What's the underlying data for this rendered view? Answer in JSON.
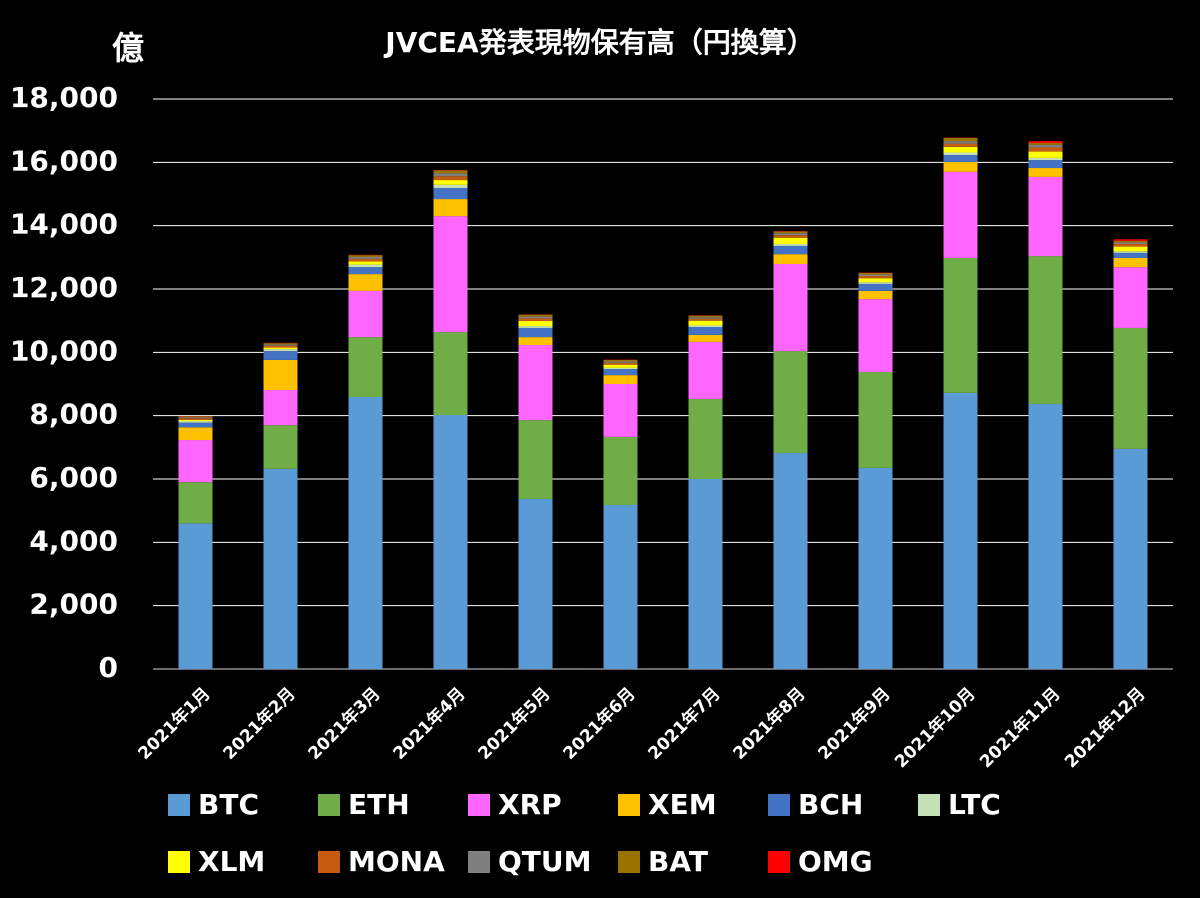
{
  "chart_data": {
    "type": "stacked_bar",
    "title": "JVCEA発表現物保有高（円換算）",
    "y_unit": "億",
    "categories": [
      "2021年1月",
      "2021年2月",
      "2021年3月",
      "2021年4月",
      "2021年5月",
      "2021年6月",
      "2021年7月",
      "2021年8月",
      "2021年9月",
      "2021年10月",
      "2021年11月",
      "2021年12月"
    ],
    "series": [
      {
        "name": "BTC",
        "color": "#5b9bd5",
        "values": [
          4600,
          6320,
          8590,
          8020,
          5370,
          5180,
          6000,
          6820,
          6350,
          8720,
          8370,
          6950
        ]
      },
      {
        "name": "ETH",
        "color": "#70ad47",
        "values": [
          1300,
          1380,
          1890,
          2620,
          2490,
          2150,
          2530,
          3220,
          3030,
          4260,
          4670,
          3820
        ]
      },
      {
        "name": "XRP",
        "color": "#ff66ff",
        "values": [
          1330,
          1110,
          1460,
          3660,
          2370,
          1670,
          1800,
          2750,
          2300,
          2720,
          2500,
          1920
        ]
      },
      {
        "name": "XEM",
        "color": "#ffc000",
        "values": [
          400,
          950,
          530,
          540,
          250,
          280,
          220,
          310,
          260,
          310,
          280,
          290
        ]
      },
      {
        "name": "BCH",
        "color": "#4472c4",
        "values": [
          150,
          280,
          220,
          350,
          290,
          190,
          250,
          260,
          220,
          220,
          250,
          160
        ]
      },
      {
        "name": "LTC",
        "color": "#c5e0b4",
        "values": [
          50,
          60,
          80,
          100,
          60,
          40,
          50,
          60,
          50,
          80,
          70,
          50
        ]
      },
      {
        "name": "XLM",
        "color": "#ffff00",
        "values": [
          40,
          50,
          100,
          150,
          160,
          100,
          150,
          200,
          130,
          180,
          200,
          150
        ]
      },
      {
        "name": "MONA",
        "color": "#c55a11",
        "values": [
          50,
          60,
          80,
          120,
          80,
          60,
          60,
          80,
          70,
          100,
          130,
          80
        ]
      },
      {
        "name": "QTUM",
        "color": "#7f7f7f",
        "values": [
          30,
          40,
          60,
          90,
          60,
          40,
          50,
          60,
          50,
          80,
          80,
          50
        ]
      },
      {
        "name": "BAT",
        "color": "#997300",
        "values": [
          30,
          40,
          60,
          100,
          60,
          50,
          50,
          60,
          50,
          100,
          60,
          50
        ]
      },
      {
        "name": "OMG",
        "color": "#ff0000",
        "values": [
          10,
          10,
          10,
          10,
          10,
          10,
          10,
          10,
          10,
          10,
          60,
          50
        ]
      }
    ],
    "ylim": [
      0,
      18000
    ],
    "yticks": [
      0,
      {
        "value": 2000,
        "label": "2,000"
      },
      {
        "value": 4000,
        "label": "4,000"
      },
      {
        "value": 6000,
        "label": "6,000"
      },
      {
        "value": 8000,
        "label": "8,000"
      },
      {
        "value": 10000,
        "label": "10,000"
      },
      {
        "value": 12000,
        "label": "12,000"
      },
      {
        "value": 14000,
        "label": "14,000"
      },
      {
        "value": 16000,
        "label": "16,000"
      },
      {
        "value": 18000,
        "label": "18,000"
      }
    ],
    "grid": true
  }
}
